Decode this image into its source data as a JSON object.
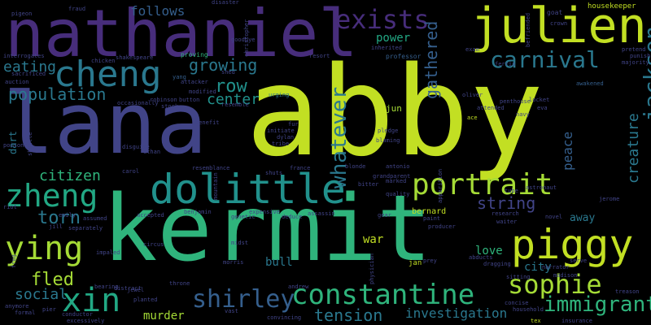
{
  "colors": {
    "background": "#000000",
    "lime": "#c2df23",
    "yellow_green": "#a5db36",
    "green": "#2fb47c",
    "green_teal": "#22a884",
    "teal": "#21918c",
    "teal_blue": "#2a788e",
    "blue": "#355f8d",
    "indigo": "#414487",
    "purple": "#472d7b",
    "deep_purple": "#440154"
  },
  "words": {
    "w000": "abby",
    "w001": "kermit",
    "w002": "lana",
    "w003": "nathaniel",
    "w004": "julien",
    "w005": "dolittle",
    "w006": "piggy",
    "w007": "constantine",
    "w008": "cheng",
    "w009": "zheng",
    "w010": "portrait",
    "w011": "xin",
    "w012": "ying",
    "w013": "jackson",
    "w014": "sophie",
    "w015": "exists",
    "w016": "whatever",
    "w017": "carnival",
    "w018": "shirley",
    "w019": "immigrant",
    "w020": "gathered",
    "w021": "creature",
    "w022": "fled",
    "w023": "torn",
    "w024": "string",
    "w025": "tension",
    "w026": "population",
    "w027": "citizen",
    "w028": "social",
    "w029": "peace",
    "w030": "row",
    "w031": "growing",
    "w032": "eating",
    "w033": "center",
    "w034": "investigation",
    "w035": "follows",
    "w036": "murder",
    "w037": "power",
    "w038": "away",
    "w039": "city",
    "w040": "love",
    "w041": "war",
    "w042": "bull",
    "w043": "dart",
    "w044": "jun",
    "w045": "housekeeper",
    "w046": "bernard",
    "w047": "jan",
    "w048": "yang",
    "w049": "proving",
    "w050": "shakespeare",
    "w051": "interrogates",
    "w052": "sacrificed",
    "w053": "auction",
    "w054": "pigeon",
    "w055": "fraud",
    "w056": "disaster",
    "w057": "christopher",
    "w058": "goodbye",
    "w059": "chicken",
    "w060": "professor",
    "w061": "inherited",
    "w062": "exam",
    "w063": "resort",
    "w064": "goat",
    "w065": "befriended",
    "w066": "crown",
    "w067": "pretend",
    "w068": "punish",
    "w069": "majority",
    "w070": "ferris",
    "w071": "awakened",
    "w072": "penthouse",
    "w073": "attended",
    "w074": "navy",
    "w075": "locket",
    "w076": "eva",
    "w077": "ace",
    "w078": "urging",
    "w079": "attacker",
    "w080": "button",
    "w081": "modified",
    "w082": "robinson",
    "w083": "shed",
    "w084": "stock",
    "w085": "occasionally",
    "w086": "resemble",
    "w087": "benefit",
    "w088": "initiate",
    "w089": "dylan",
    "w090": "tribe",
    "w091": "fur",
    "w092": "pledge",
    "w093": "blaming",
    "w094": "oliver",
    "w095": "poisoned",
    "w096": "disguise",
    "w097": "ethan",
    "w098": "carol",
    "w099": "resemblance",
    "w100": "france",
    "w101": "blonde",
    "w102": "antonio",
    "w103": "shuts",
    "w104": "mountain",
    "w105": "apparition",
    "w106": "quality",
    "w107": "grandparent",
    "w108": "marked",
    "w109": "bitter",
    "w110": "benjamin",
    "w111": "expensive",
    "w112": "assassin",
    "w113": "deduce",
    "w114": "genetic",
    "w115": "gear",
    "w116": "accepted",
    "w117": "research",
    "w118": "tube",
    "w119": "astronaut",
    "w120": "waiter",
    "w121": "jerome",
    "w122": "novel",
    "w123": "producer",
    "w124": "paint",
    "w125": "abducts",
    "w126": "dragging",
    "w127": "narrator",
    "w128": "madison",
    "w129": "sitting",
    "w130": "serve",
    "w131": "treason",
    "w132": "emily",
    "w133": "assumed",
    "w134": "separately",
    "w135": "jill",
    "w136": "impaled",
    "w137": "circus",
    "w138": "morris",
    "w139": "midst",
    "w140": "throne",
    "w141": "jewel",
    "w142": "planted",
    "w143": "distract",
    "w144": "andrew",
    "w145": "physician",
    "w146": "prey",
    "w147": "concise",
    "w148": "household",
    "w149": "tex",
    "w150": "insurance",
    "w151": "conductor",
    "w152": "excessively",
    "w153": "formal",
    "w154": "anymore",
    "w155": "frog",
    "w156": "convincing",
    "w157": "vast",
    "w158": "riot",
    "w159": "shuttle",
    "w160": "bearing",
    "w161": "pier"
  }
}
